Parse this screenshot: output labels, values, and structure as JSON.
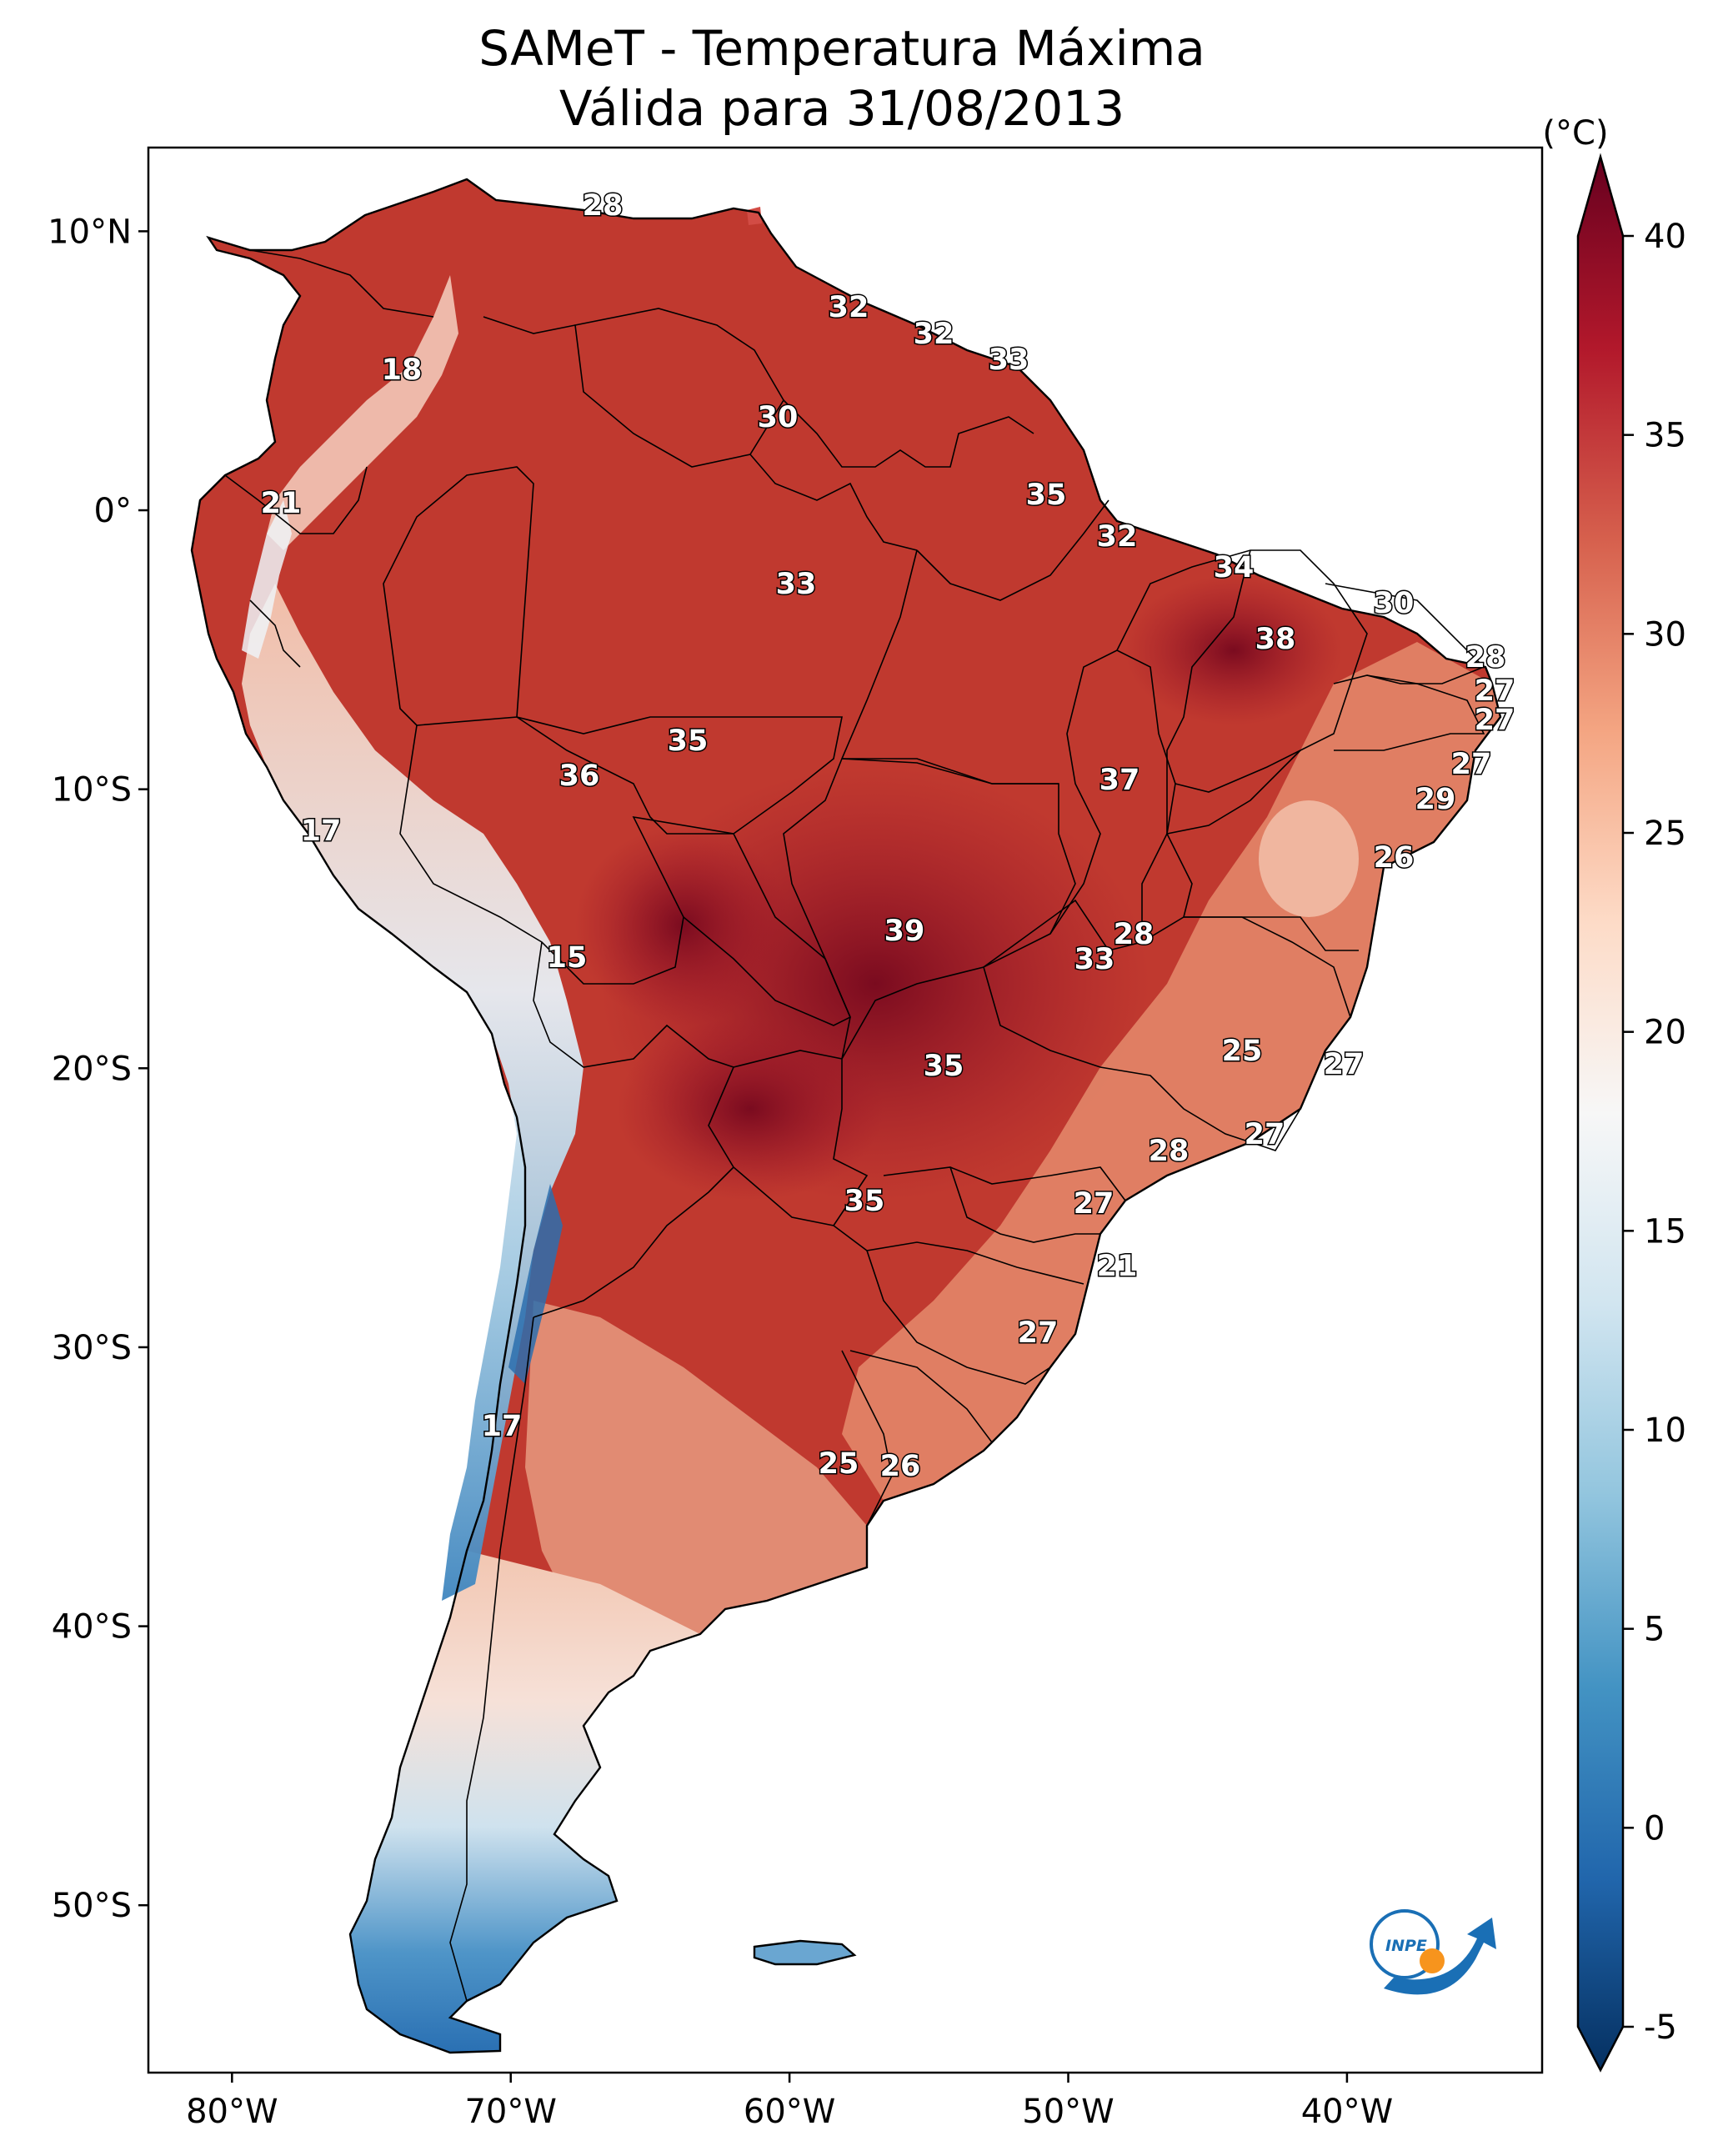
{
  "title": {
    "line1": "SAMeT - Temperatura Máxima",
    "line2": "Válida para 31/08/2013"
  },
  "colorbar": {
    "unit": "(°C)",
    "min": -5,
    "max": 40,
    "ticks": [
      "40",
      "35",
      "30",
      "25",
      "20",
      "15",
      "10",
      "5",
      "0",
      "-5"
    ],
    "colors": [
      "#67001f",
      "#b2182b",
      "#d6604d",
      "#f4a582",
      "#fddbc7",
      "#f7f7f7",
      "#d1e5f0",
      "#92c5de",
      "#4393c3",
      "#2166ac",
      "#053061"
    ]
  },
  "axes": {
    "lon_labels": [
      "80°W",
      "70°W",
      "60°W",
      "50°W",
      "40°W"
    ],
    "lat_labels": [
      "10°N",
      "0°",
      "10°S",
      "20°S",
      "30°S",
      "40°S",
      "50°S"
    ]
  },
  "logo": {
    "text": "INPE",
    "name": "inpe-logo"
  },
  "temperature_labels": [
    {
      "value": "28"
    },
    {
      "value": "18"
    },
    {
      "value": "32"
    },
    {
      "value": "32"
    },
    {
      "value": "33"
    },
    {
      "value": "30"
    },
    {
      "value": "21"
    },
    {
      "value": "35"
    },
    {
      "value": "32"
    },
    {
      "value": "34"
    },
    {
      "value": "33"
    },
    {
      "value": "30"
    },
    {
      "value": "38"
    },
    {
      "value": "28"
    },
    {
      "value": "27"
    },
    {
      "value": "27"
    },
    {
      "value": "35"
    },
    {
      "value": "27"
    },
    {
      "value": "36"
    },
    {
      "value": "37"
    },
    {
      "value": "29"
    },
    {
      "value": "17"
    },
    {
      "value": "26"
    },
    {
      "value": "28"
    },
    {
      "value": "39"
    },
    {
      "value": "15"
    },
    {
      "value": "33"
    },
    {
      "value": "25"
    },
    {
      "value": "27"
    },
    {
      "value": "35"
    },
    {
      "value": "27"
    },
    {
      "value": "28"
    },
    {
      "value": "35"
    },
    {
      "value": "27"
    },
    {
      "value": "21"
    },
    {
      "value": "27"
    },
    {
      "value": "17"
    },
    {
      "value": "25"
    },
    {
      "value": "26"
    }
  ]
}
